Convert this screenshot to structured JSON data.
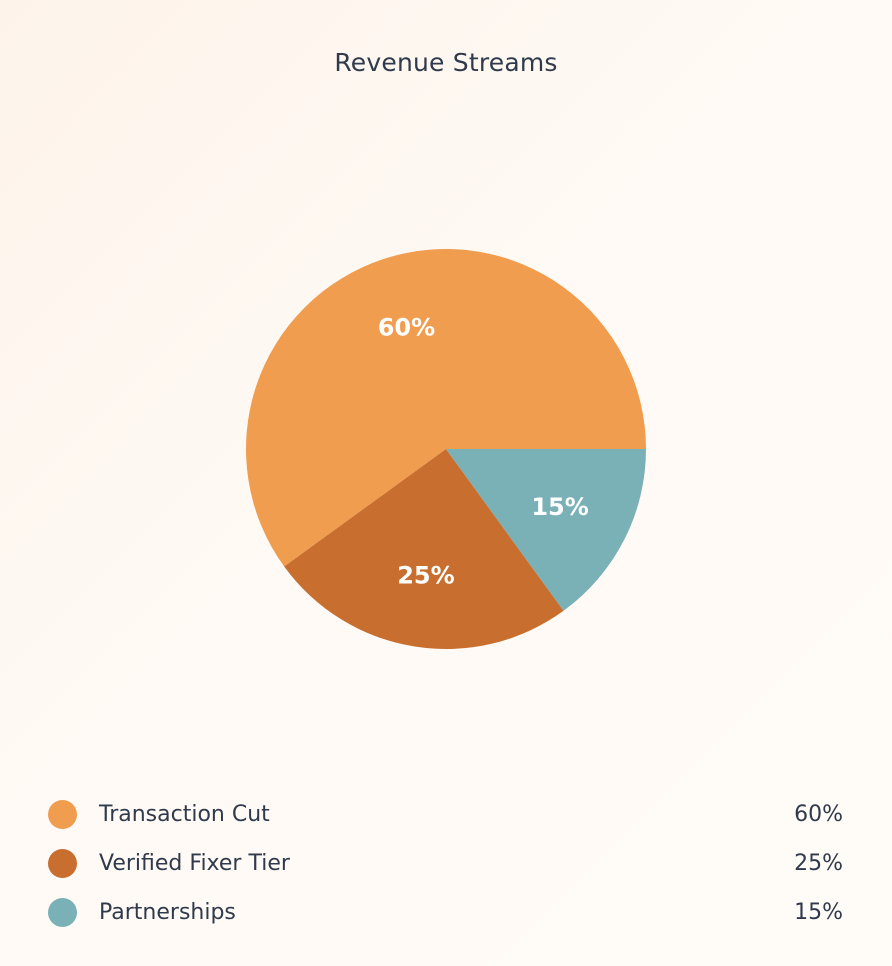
{
  "chart_data": {
    "type": "pie",
    "title": "Revenue Streams",
    "slices": [
      {
        "label": "Transaction Cut",
        "value": 60,
        "display": "60%",
        "color": "#f09d50"
      },
      {
        "label": "Verified Fixer Tier",
        "value": 25,
        "display": "25%",
        "color": "#c86e2e"
      },
      {
        "label": "Partnerships",
        "value": 15,
        "display": "15%",
        "color": "#79b1b6"
      }
    ],
    "legend_position": "bottom"
  }
}
